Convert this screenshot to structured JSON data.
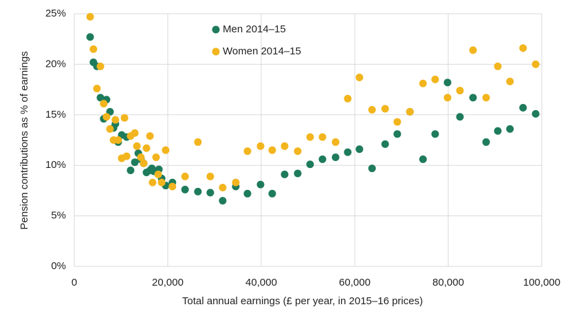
{
  "chart_data": {
    "type": "scatter",
    "x_label": "Total annual earnings (£ per year, in 2015–16 prices)",
    "y_label": "Pension contributions as % of earnings",
    "xlim": [
      0,
      100000
    ],
    "xticks": [
      0,
      {
        "value": 20000,
        "label": "20,000"
      },
      {
        "value": 40000,
        "label": "40,000"
      },
      {
        "value": 60000,
        "label": "60,000"
      },
      {
        "value": 80000,
        "label": "80,000"
      },
      {
        "value": 100000,
        "label": "100,000"
      }
    ],
    "ylim": [
      0,
      25
    ],
    "yticks": [
      {
        "value": 0,
        "label": "0%"
      },
      {
        "value": 5,
        "label": "5%"
      },
      {
        "value": 10,
        "label": "10%"
      },
      {
        "value": 15,
        "label": "15%"
      },
      {
        "value": 20,
        "label": "20%"
      },
      {
        "value": 25,
        "label": "25%"
      }
    ],
    "grid": true,
    "legend": "upper center",
    "series": [
      {
        "name": "Men 2014–15",
        "color": "#1e7b5b",
        "x": [
          3400,
          4100,
          4850,
          5600,
          6300,
          6900,
          7650,
          8400,
          8800,
          9400,
          10150,
          11200,
          12050,
          12950,
          13700,
          14250,
          14850,
          15450,
          16200,
          16600,
          17050,
          18100,
          18700,
          19550,
          21000,
          23700,
          26450,
          29100,
          31750,
          34550,
          37050,
          39850,
          42350,
          45000,
          47800,
          50450,
          53100,
          55900,
          58500,
          61000,
          63700,
          66500,
          69100,
          71800,
          74600,
          77200,
          79850,
          82500,
          85300,
          88100,
          90600,
          93200,
          96000,
          98700
        ],
        "values": [
          22.7,
          20.2,
          19.8,
          16.7,
          14.6,
          16.5,
          15.3,
          13.7,
          14.1,
          12.3,
          13.0,
          12.8,
          9.5,
          10.3,
          11.2,
          10.6,
          10.2,
          9.3,
          9.5,
          9.7,
          9.4,
          9.6,
          8.7,
          8.0,
          8.3,
          7.6,
          7.4,
          7.3,
          6.5,
          7.9,
          7.2,
          8.1,
          7.2,
          9.1,
          9.2,
          10.1,
          10.6,
          10.8,
          11.3,
          11.6,
          9.7,
          12.1,
          13.1,
          15.3,
          10.6,
          13.1,
          18.2,
          14.8,
          16.7,
          12.3,
          13.4,
          13.6,
          15.7,
          15.1
        ]
      },
      {
        "name": "Women 2014–15",
        "color": "#f2b51e",
        "x": [
          3400,
          4100,
          4850,
          5600,
          6300,
          6900,
          7650,
          8400,
          8800,
          9400,
          10150,
          10750,
          11200,
          12050,
          12950,
          13400,
          14250,
          14850,
          15450,
          16200,
          16750,
          17500,
          17950,
          18700,
          19550,
          21000,
          23700,
          26450,
          29100,
          31750,
          34550,
          37050,
          39850,
          42350,
          45000,
          47800,
          50450,
          53100,
          55900,
          58500,
          61000,
          63700,
          66500,
          69100,
          71800,
          74600,
          77200,
          79850,
          82500,
          85300,
          88100,
          90600,
          93200,
          96000,
          98700
        ],
        "values": [
          24.7,
          21.5,
          17.6,
          19.8,
          16.1,
          14.8,
          13.6,
          12.5,
          14.5,
          12.5,
          10.7,
          14.7,
          10.9,
          12.9,
          13.2,
          11.9,
          10.8,
          10.2,
          11.7,
          12.9,
          8.3,
          10.8,
          9.1,
          8.3,
          11.5,
          7.9,
          8.9,
          12.3,
          8.9,
          7.8,
          8.3,
          11.4,
          11.9,
          11.5,
          11.9,
          11.4,
          12.8,
          12.8,
          12.3,
          16.6,
          18.7,
          15.5,
          15.6,
          14.3,
          15.3,
          18.1,
          18.5,
          16.7,
          17.4,
          21.4,
          16.7,
          19.8,
          18.3,
          21.6,
          20.0
        ]
      }
    ]
  }
}
